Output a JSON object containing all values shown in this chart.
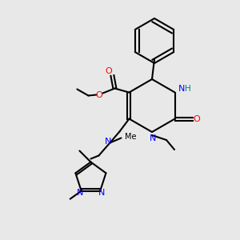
{
  "bg_color": "#e8e8e8",
  "bond_color": "#000000",
  "bond_width": 1.5,
  "atom_colors": {
    "N": "#0000ff",
    "O": "#ff0000",
    "C": "#000000",
    "H": "#008080"
  },
  "font_size": 7.5
}
